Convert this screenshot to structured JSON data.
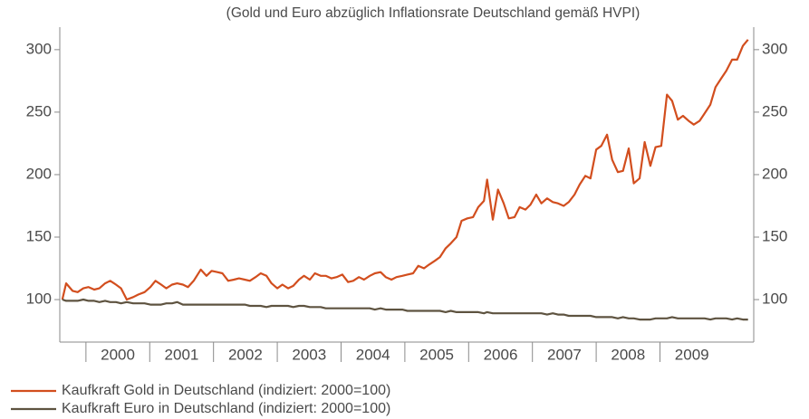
{
  "chart_data": {
    "type": "line",
    "title": "(Gold und Euro abzüglich Inflationsrate Deutschland gemäß HVPI)",
    "x": [
      1999.63,
      1999.69,
      1999.79,
      1999.87,
      1999.96,
      2000.04,
      2000.13,
      2000.21,
      2000.3,
      2000.38,
      2000.47,
      2000.55,
      2000.64,
      2000.74,
      2000.82,
      2000.92,
      2001.01,
      2001.09,
      2001.18,
      2001.26,
      2001.35,
      2001.43,
      2001.52,
      2001.6,
      2001.69,
      2001.8,
      2001.89,
      2001.97,
      2002.06,
      2002.14,
      2002.23,
      2002.32,
      2002.4,
      2002.49,
      2002.57,
      2002.66,
      2002.74,
      2002.83,
      2002.91,
      2003.0,
      2003.08,
      2003.17,
      2003.25,
      2003.34,
      2003.42,
      2003.51,
      2003.59,
      2003.68,
      2003.76,
      2003.85,
      2003.93,
      2004.02,
      2004.11,
      2004.19,
      2004.28,
      2004.36,
      2004.45,
      2004.53,
      2004.62,
      2004.7,
      2004.79,
      2004.87,
      2004.96,
      2005.04,
      2005.13,
      2005.21,
      2005.3,
      2005.38,
      2005.47,
      2005.55,
      2005.64,
      2005.72,
      2005.81,
      2005.89,
      2005.98,
      2006.07,
      2006.15,
      2006.24,
      2006.29,
      2006.38,
      2006.46,
      2006.55,
      2006.63,
      2006.72,
      2006.8,
      2006.89,
      2006.97,
      2007.06,
      2007.14,
      2007.23,
      2007.32,
      2007.4,
      2007.49,
      2007.57,
      2007.66,
      2007.74,
      2007.83,
      2007.91,
      2008.0,
      2008.08,
      2008.17,
      2008.25,
      2008.34,
      2008.42,
      2008.51,
      2008.59,
      2008.68,
      2008.76,
      2008.85,
      2008.93,
      2009.02,
      2009.11,
      2009.19,
      2009.28,
      2009.36,
      2009.45,
      2009.53,
      2009.62,
      2009.7,
      2009.79,
      2009.87,
      2009.96,
      2010.04,
      2010.13,
      2010.21,
      2010.3,
      2010.38
    ],
    "series": [
      {
        "name": "Kaufkraft Gold in Deutschland (indiziert: 2000=100)",
        "color": "#d24e1e",
        "values": [
          100,
          113,
          107,
          106,
          109,
          110,
          108,
          109,
          113,
          115,
          112,
          109,
          100,
          102,
          104,
          106,
          110,
          115,
          112,
          109,
          112,
          113,
          112,
          110,
          115,
          124,
          119,
          123,
          122,
          121,
          115,
          116,
          117,
          116,
          115,
          118,
          121,
          119,
          113,
          109,
          112,
          109,
          111,
          116,
          119,
          116,
          121,
          119,
          119,
          117,
          118,
          120,
          114,
          115,
          118,
          116,
          119,
          121,
          122,
          118,
          116,
          118,
          119,
          120,
          121,
          127,
          125,
          128,
          131,
          134,
          141,
          145,
          150,
          163,
          165,
          166,
          174,
          179,
          196,
          164,
          188,
          177,
          165,
          166,
          174,
          172,
          176,
          184,
          177,
          181,
          178,
          177,
          175,
          178,
          184,
          192,
          199,
          197,
          220,
          223,
          232,
          212,
          202,
          203,
          221,
          193,
          197,
          226,
          207,
          222,
          223,
          264,
          259,
          244,
          247,
          243,
          240,
          243,
          249,
          256,
          270,
          277,
          283,
          292,
          292,
          303,
          308
        ]
      },
      {
        "name": "Kaufkraft Euro in Deutschland (indiziert: 2000=100)",
        "color": "#5e5340",
        "values": [
          100,
          99,
          99,
          99,
          100,
          99,
          99,
          98,
          99,
          98,
          98,
          97,
          98,
          97,
          97,
          97,
          96,
          96,
          96,
          97,
          97,
          98,
          96,
          96,
          96,
          96,
          96,
          96,
          96,
          96,
          96,
          96,
          96,
          96,
          95,
          95,
          95,
          94,
          95,
          95,
          95,
          95,
          94,
          95,
          95,
          94,
          94,
          94,
          93,
          93,
          93,
          93,
          93,
          93,
          93,
          93,
          93,
          92,
          93,
          92,
          92,
          92,
          92,
          91,
          91,
          91,
          91,
          91,
          91,
          91,
          90,
          91,
          90,
          90,
          90,
          90,
          90,
          89,
          90,
          89,
          89,
          89,
          89,
          89,
          89,
          89,
          89,
          89,
          89,
          88,
          89,
          88,
          88,
          87,
          87,
          87,
          87,
          87,
          86,
          86,
          86,
          86,
          85,
          86,
          85,
          85,
          84,
          84,
          84,
          85,
          85,
          85,
          86,
          85,
          85,
          85,
          85,
          85,
          85,
          84,
          85,
          85,
          85,
          84,
          85,
          84,
          84
        ]
      }
    ],
    "xlim": [
      1999.59,
      2010.47
    ],
    "xticks": [
      2000,
      2001,
      2002,
      2003,
      2004,
      2005,
      2006,
      2007,
      2008,
      2009
    ],
    "ylim": [
      66,
      318
    ],
    "yticks": [
      100,
      150,
      200,
      250,
      300
    ]
  }
}
